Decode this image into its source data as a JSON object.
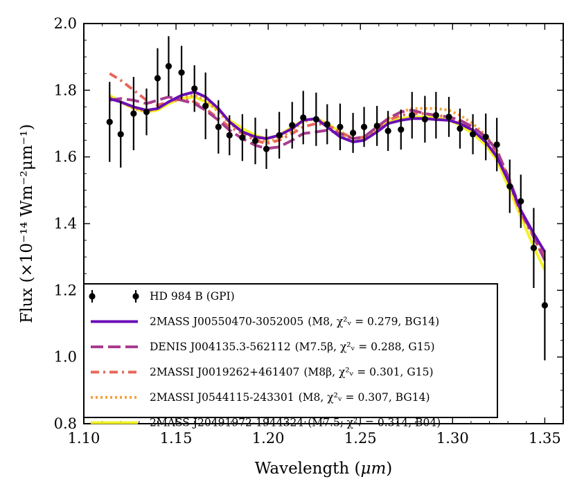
{
  "chart_data": {
    "type": "line",
    "xlabel_main": "Wavelength (",
    "xlabel_unit": "μm",
    "xlabel_end": ")",
    "ylabel": "Flux (×10⁻¹⁴ Wm⁻²μm⁻¹)",
    "xlim": [
      1.1,
      1.36
    ],
    "ylim": [
      0.8,
      2.0
    ],
    "xticks": [
      "1.10",
      "1.15",
      "1.20",
      "1.25",
      "1.30",
      "1.35"
    ],
    "yticks": [
      "0.8",
      "1.0",
      "1.2",
      "1.4",
      "1.6",
      "1.8",
      "2.0"
    ],
    "legend_position": "lower-left",
    "observed": {
      "name": "HD 984 B (GPI)",
      "color": "#000000",
      "points": [
        {
          "x": 1.114,
          "y": 1.705,
          "err": 0.12
        },
        {
          "x": 1.12,
          "y": 1.668,
          "err": 0.1
        },
        {
          "x": 1.127,
          "y": 1.73,
          "err": 0.11
        },
        {
          "x": 1.134,
          "y": 1.735,
          "err": 0.07
        },
        {
          "x": 1.14,
          "y": 1.836,
          "err": 0.09
        },
        {
          "x": 1.146,
          "y": 1.872,
          "err": 0.09
        },
        {
          "x": 1.153,
          "y": 1.853,
          "err": 0.08
        },
        {
          "x": 1.16,
          "y": 1.805,
          "err": 0.07
        },
        {
          "x": 1.166,
          "y": 1.753,
          "err": 0.1
        },
        {
          "x": 1.173,
          "y": 1.69,
          "err": 0.08
        },
        {
          "x": 1.179,
          "y": 1.665,
          "err": 0.06
        },
        {
          "x": 1.186,
          "y": 1.658,
          "err": 0.07
        },
        {
          "x": 1.193,
          "y": 1.648,
          "err": 0.07
        },
        {
          "x": 1.199,
          "y": 1.624,
          "err": 0.06
        },
        {
          "x": 1.206,
          "y": 1.665,
          "err": 0.07
        },
        {
          "x": 1.213,
          "y": 1.695,
          "err": 0.07
        },
        {
          "x": 1.219,
          "y": 1.718,
          "err": 0.08
        },
        {
          "x": 1.226,
          "y": 1.713,
          "err": 0.08
        },
        {
          "x": 1.232,
          "y": 1.698,
          "err": 0.06
        },
        {
          "x": 1.239,
          "y": 1.69,
          "err": 0.07
        },
        {
          "x": 1.246,
          "y": 1.672,
          "err": 0.06
        },
        {
          "x": 1.252,
          "y": 1.69,
          "err": 0.06
        },
        {
          "x": 1.259,
          "y": 1.693,
          "err": 0.06
        },
        {
          "x": 1.265,
          "y": 1.678,
          "err": 0.06
        },
        {
          "x": 1.272,
          "y": 1.682,
          "err": 0.06
        },
        {
          "x": 1.278,
          "y": 1.725,
          "err": 0.07
        },
        {
          "x": 1.285,
          "y": 1.713,
          "err": 0.07
        },
        {
          "x": 1.291,
          "y": 1.725,
          "err": 0.07
        },
        {
          "x": 1.298,
          "y": 1.72,
          "err": 0.06
        },
        {
          "x": 1.304,
          "y": 1.685,
          "err": 0.06
        },
        {
          "x": 1.311,
          "y": 1.668,
          "err": 0.06
        },
        {
          "x": 1.318,
          "y": 1.66,
          "err": 0.07
        },
        {
          "x": 1.324,
          "y": 1.637,
          "err": 0.08
        },
        {
          "x": 1.331,
          "y": 1.512,
          "err": 0.08
        },
        {
          "x": 1.337,
          "y": 1.467,
          "err": 0.08
        },
        {
          "x": 1.344,
          "y": 1.327,
          "err": 0.12
        },
        {
          "x": 1.35,
          "y": 1.155,
          "err": 0.165
        }
      ]
    },
    "series": [
      {
        "name": "2MASS J00550470-3052005",
        "desc": "(M8, χ²ᵥ = 0.279, BG14)",
        "color": "#6a0fb5",
        "style": "solid",
        "x": [
          1.114,
          1.12,
          1.127,
          1.134,
          1.14,
          1.146,
          1.153,
          1.16,
          1.166,
          1.173,
          1.179,
          1.186,
          1.193,
          1.199,
          1.206,
          1.213,
          1.219,
          1.226,
          1.232,
          1.239,
          1.246,
          1.252,
          1.259,
          1.265,
          1.272,
          1.278,
          1.285,
          1.291,
          1.298,
          1.304,
          1.311,
          1.318,
          1.324,
          1.331,
          1.337,
          1.344,
          1.35
        ],
        "y": [
          1.775,
          1.765,
          1.75,
          1.74,
          1.745,
          1.765,
          1.785,
          1.795,
          1.78,
          1.745,
          1.705,
          1.675,
          1.66,
          1.655,
          1.665,
          1.685,
          1.71,
          1.715,
          1.69,
          1.66,
          1.645,
          1.65,
          1.675,
          1.7,
          1.71,
          1.715,
          1.715,
          1.712,
          1.71,
          1.7,
          1.68,
          1.645,
          1.6,
          1.52,
          1.44,
          1.37,
          1.315
        ]
      },
      {
        "name": "DENIS J004135.3-562112",
        "desc": "(M7.5β, χ²ᵥ = 0.288, G15)",
        "color": "#a83c8e",
        "style": "dashed",
        "x": [
          1.114,
          1.12,
          1.127,
          1.134,
          1.14,
          1.146,
          1.153,
          1.16,
          1.166,
          1.173,
          1.179,
          1.186,
          1.193,
          1.199,
          1.206,
          1.213,
          1.219,
          1.226,
          1.232,
          1.239,
          1.246,
          1.252,
          1.259,
          1.265,
          1.272,
          1.278,
          1.285,
          1.291,
          1.298,
          1.304,
          1.311,
          1.318,
          1.324,
          1.331,
          1.337,
          1.344,
          1.35
        ],
        "y": [
          1.77,
          1.775,
          1.77,
          1.76,
          1.77,
          1.78,
          1.77,
          1.76,
          1.74,
          1.71,
          1.68,
          1.655,
          1.635,
          1.625,
          1.63,
          1.65,
          1.67,
          1.675,
          1.68,
          1.67,
          1.655,
          1.66,
          1.69,
          1.715,
          1.735,
          1.74,
          1.73,
          1.725,
          1.72,
          1.71,
          1.69,
          1.66,
          1.62,
          1.53,
          1.44,
          1.36,
          1.29
        ]
      },
      {
        "name": "2MASSI J0019262+461407",
        "desc": "(M8β, χ²ᵥ = 0.301, G15)",
        "color": "#e8675a",
        "style": "dashdot",
        "x": [
          1.114,
          1.12,
          1.127,
          1.134,
          1.14,
          1.146,
          1.153,
          1.16,
          1.166,
          1.173,
          1.179,
          1.186,
          1.193,
          1.199,
          1.206,
          1.213,
          1.219,
          1.226,
          1.232,
          1.239,
          1.246,
          1.252,
          1.259,
          1.265,
          1.272,
          1.278,
          1.285,
          1.291,
          1.298,
          1.304,
          1.311,
          1.318,
          1.324,
          1.331,
          1.337,
          1.344,
          1.35
        ],
        "y": [
          1.85,
          1.83,
          1.8,
          1.77,
          1.755,
          1.765,
          1.775,
          1.765,
          1.745,
          1.715,
          1.69,
          1.67,
          1.65,
          1.64,
          1.65,
          1.67,
          1.69,
          1.7,
          1.695,
          1.675,
          1.655,
          1.66,
          1.685,
          1.71,
          1.725,
          1.73,
          1.73,
          1.725,
          1.72,
          1.705,
          1.68,
          1.65,
          1.61,
          1.52,
          1.43,
          1.36,
          1.3
        ]
      },
      {
        "name": "2MASSI J0544115-243301",
        "desc": "(M8, χ²ᵥ = 0.307, BG14)",
        "color": "#f5a23c",
        "style": "dotted",
        "x": [
          1.114,
          1.12,
          1.127,
          1.134,
          1.14,
          1.146,
          1.153,
          1.16,
          1.166,
          1.173,
          1.179,
          1.186,
          1.193,
          1.199,
          1.206,
          1.213,
          1.219,
          1.226,
          1.232,
          1.239,
          1.246,
          1.252,
          1.259,
          1.265,
          1.272,
          1.278,
          1.285,
          1.291,
          1.298,
          1.304,
          1.311,
          1.318,
          1.324,
          1.331,
          1.337,
          1.344,
          1.35
        ],
        "y": [
          1.78,
          1.765,
          1.745,
          1.735,
          1.745,
          1.765,
          1.78,
          1.785,
          1.77,
          1.735,
          1.7,
          1.675,
          1.655,
          1.645,
          1.655,
          1.68,
          1.705,
          1.715,
          1.7,
          1.67,
          1.65,
          1.655,
          1.685,
          1.715,
          1.735,
          1.745,
          1.745,
          1.745,
          1.74,
          1.725,
          1.7,
          1.665,
          1.62,
          1.53,
          1.44,
          1.36,
          1.29
        ]
      },
      {
        "name": "2MASS J20491972-1944324",
        "desc": "(M7.5, χ²ᵥ = 0.314, B04)",
        "color": "#f2f22a",
        "style": "solid",
        "x": [
          1.114,
          1.12,
          1.127,
          1.134,
          1.14,
          1.146,
          1.153,
          1.16,
          1.166,
          1.173,
          1.179,
          1.186,
          1.193,
          1.199,
          1.206,
          1.213,
          1.219,
          1.226,
          1.232,
          1.239,
          1.246,
          1.252,
          1.259,
          1.265,
          1.272,
          1.278,
          1.285,
          1.291,
          1.298,
          1.304,
          1.311,
          1.318,
          1.324,
          1.331,
          1.337,
          1.344,
          1.35
        ],
        "y": [
          1.785,
          1.765,
          1.745,
          1.735,
          1.74,
          1.76,
          1.775,
          1.78,
          1.765,
          1.74,
          1.71,
          1.685,
          1.665,
          1.655,
          1.665,
          1.69,
          1.71,
          1.715,
          1.7,
          1.675,
          1.655,
          1.66,
          1.685,
          1.705,
          1.715,
          1.72,
          1.72,
          1.718,
          1.71,
          1.695,
          1.67,
          1.635,
          1.59,
          1.5,
          1.42,
          1.33,
          1.26
        ]
      }
    ]
  }
}
